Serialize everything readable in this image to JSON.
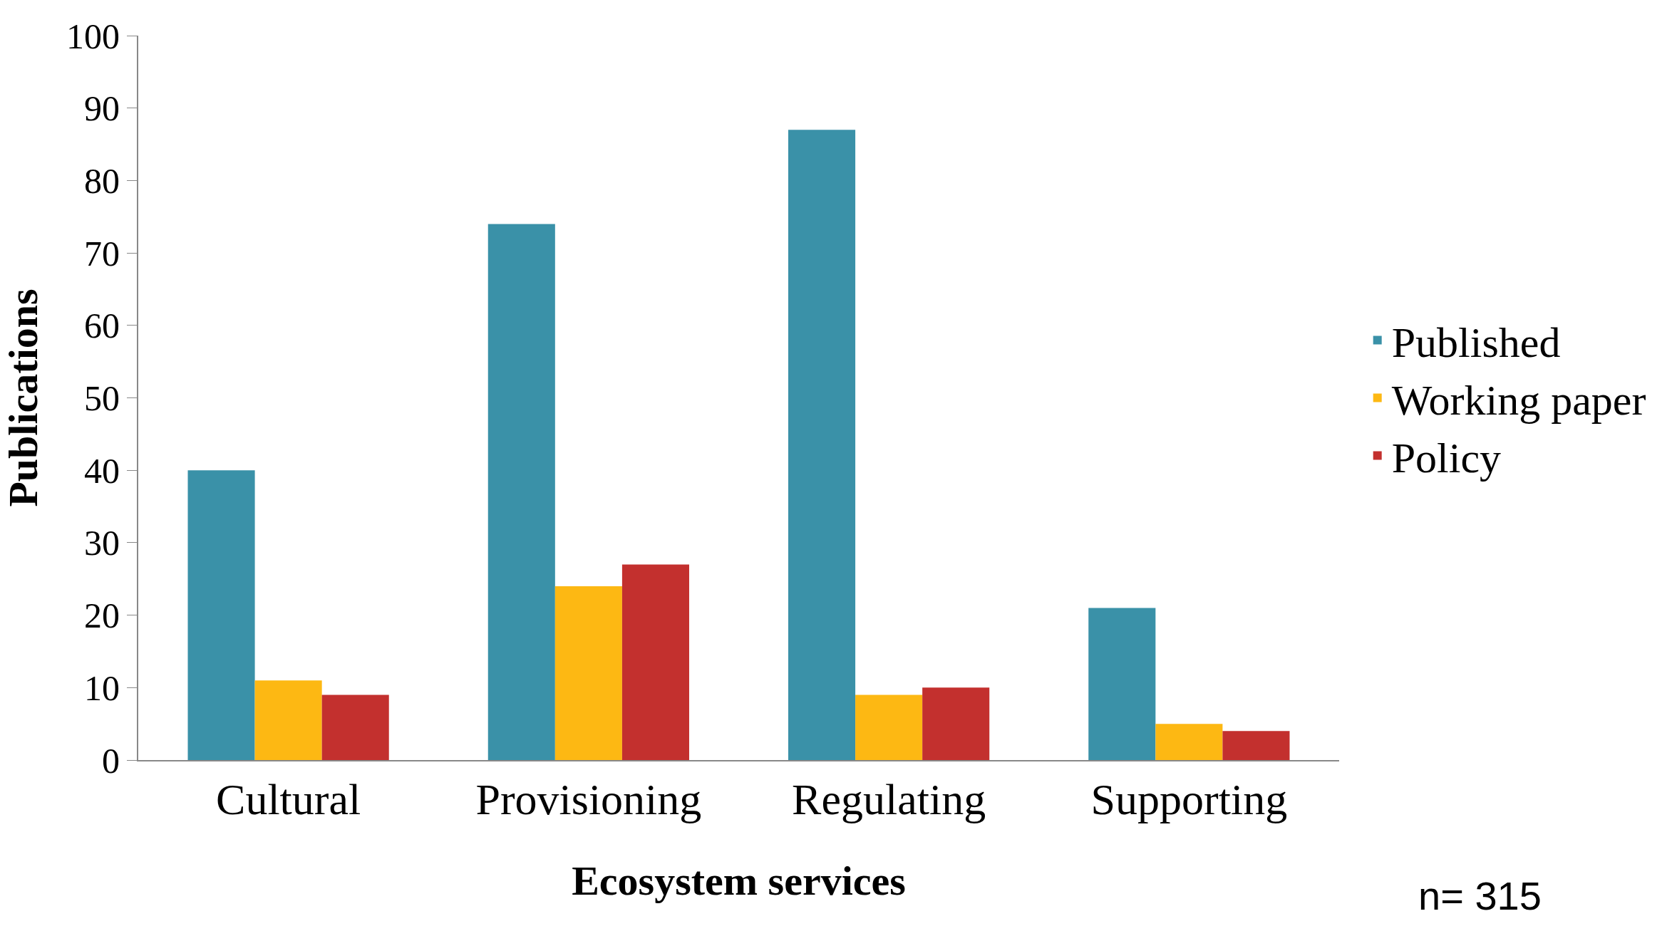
{
  "chart_data": {
    "type": "bar",
    "xlabel": "Ecosystem services",
    "ylabel": "Publications",
    "categories": [
      "Cultural",
      "Provisioning",
      "Regulating",
      "Supporting"
    ],
    "series": [
      {
        "name": "Published",
        "color": "#3a91a8",
        "values": [
          40,
          74,
          87,
          21
        ]
      },
      {
        "name": "Working paper",
        "color": "#fdb813",
        "values": [
          11,
          24,
          9,
          5
        ]
      },
      {
        "name": "Policy",
        "color": "#c3302e",
        "values": [
          9,
          27,
          10,
          4
        ]
      }
    ],
    "ylim": [
      0,
      100
    ],
    "yticks": [
      0,
      10,
      20,
      30,
      40,
      50,
      60,
      70,
      80,
      90,
      100
    ],
    "legend": "right",
    "annotations": [
      "n= 315"
    ]
  }
}
